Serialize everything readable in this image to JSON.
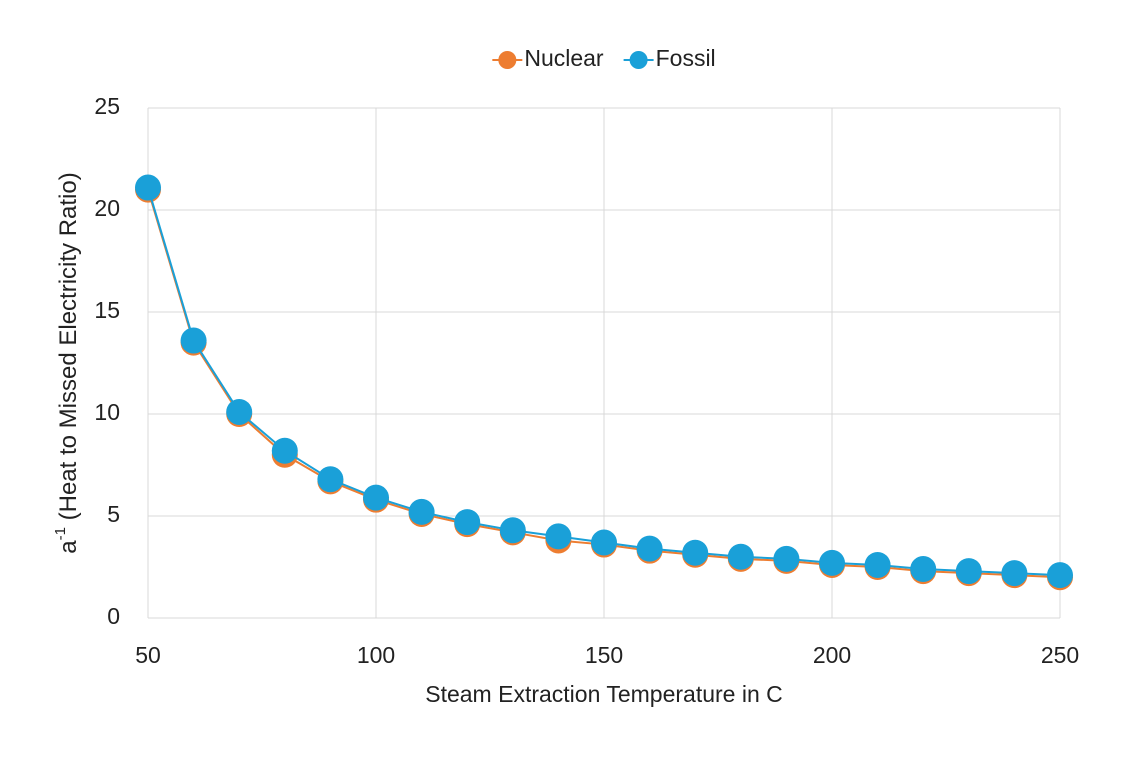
{
  "chart_data": {
    "type": "line",
    "y_label_parts": [
      "a",
      "-1",
      " (Heat to Missed Electricity Ratio)"
    ],
    "x_label": "Steam Extraction Temperature in C",
    "x": [
      50,
      60,
      70,
      80,
      90,
      100,
      110,
      120,
      130,
      140,
      150,
      160,
      170,
      180,
      190,
      200,
      210,
      220,
      230,
      240,
      250
    ],
    "series": [
      {
        "name": "Nuclear",
        "color": "#ed7d31",
        "values": [
          21.0,
          13.5,
          10.0,
          8.0,
          6.7,
          5.8,
          5.1,
          4.6,
          4.2,
          3.8,
          3.6,
          3.3,
          3.1,
          2.9,
          2.8,
          2.6,
          2.5,
          2.3,
          2.2,
          2.1,
          2.0
        ]
      },
      {
        "name": "Fossil",
        "color": "#1aa0d8",
        "values": [
          21.1,
          13.6,
          10.1,
          8.2,
          6.8,
          5.9,
          5.2,
          4.7,
          4.3,
          4.0,
          3.7,
          3.4,
          3.2,
          3.0,
          2.9,
          2.7,
          2.6,
          2.4,
          2.3,
          2.2,
          2.1
        ]
      }
    ],
    "xlim": [
      50,
      250
    ],
    "xticks": [
      50,
      100,
      150,
      200,
      250
    ],
    "ylim": [
      0,
      25
    ],
    "yticks": [
      0,
      5,
      10,
      15,
      20,
      25
    ],
    "grid": true,
    "legend": "top"
  }
}
